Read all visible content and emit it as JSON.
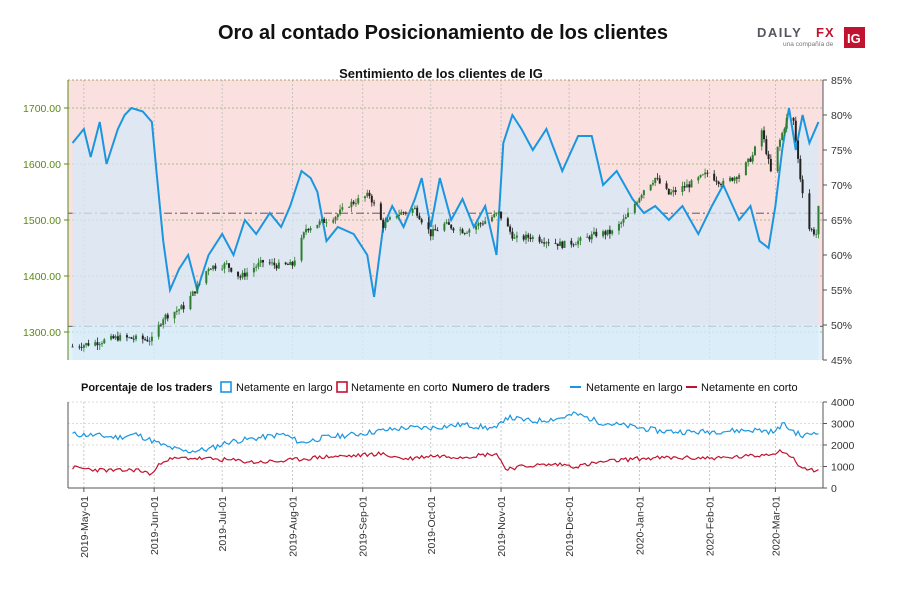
{
  "page": {
    "title": "Oro al contado Posicionamiento de los clientes",
    "logo": {
      "brand": "DAILYFX",
      "tagline": "una compañía de",
      "badge": "IG"
    }
  },
  "colors": {
    "long": "#1a96e0",
    "short": "#c1122f",
    "candle_up": "#2e7d32",
    "candle_down": "#222222",
    "zone_above_50": "#fbe0e0",
    "zone_below_50": "#e6f2fa",
    "left_axis": "#5a8a12"
  },
  "chart_data": [
    {
      "type": "line",
      "title": "Sentimiento de los clientes de IG",
      "x_ticks": [
        "2019-May-01",
        "2019-Jun-01",
        "2019-Jul-01",
        "2019-Aug-01",
        "2019-Sep-01",
        "2019-Oct-01",
        "2019-Nov-01",
        "2019-Dec-01",
        "2020-Jan-01",
        "2020-Feb-01",
        "2020-Mar-01"
      ],
      "left_axis": {
        "ticks": [
          "1300.00",
          "1400.00",
          "1500.00",
          "1600.00",
          "1700.00"
        ],
        "ylim": [
          1250,
          1750
        ]
      },
      "right_axis": {
        "ticks": [
          "45%",
          "50%",
          "55%",
          "60%",
          "65%",
          "70%",
          "75%",
          "80%",
          "85%"
        ],
        "ylim": [
          45,
          85
        ]
      },
      "reference_lines": [
        1310,
        1512
      ],
      "price_ohlc_series": {
        "name": "Oro al contado",
        "points": [
          [
            "2019-04-26",
            1274
          ],
          [
            "2019-05-06",
            1281
          ],
          [
            "2019-05-16",
            1290
          ],
          [
            "2019-05-24",
            1288
          ],
          [
            "2019-05-31",
            1286
          ],
          [
            "2019-06-05",
            1326
          ],
          [
            "2019-06-14",
            1345
          ],
          [
            "2019-06-20",
            1380
          ],
          [
            "2019-06-25",
            1416
          ],
          [
            "2019-07-03",
            1420
          ],
          [
            "2019-07-09",
            1398
          ],
          [
            "2019-07-15",
            1415
          ],
          [
            "2019-07-19",
            1425
          ],
          [
            "2019-07-26",
            1418
          ],
          [
            "2019-08-01",
            1420
          ],
          [
            "2019-08-07",
            1485
          ],
          [
            "2019-08-13",
            1495
          ],
          [
            "2019-08-20",
            1507
          ],
          [
            "2019-08-26",
            1528
          ],
          [
            "2019-09-04",
            1545
          ],
          [
            "2019-09-10",
            1490
          ],
          [
            "2019-09-16",
            1510
          ],
          [
            "2019-09-24",
            1520
          ],
          [
            "2019-10-01",
            1475
          ],
          [
            "2019-10-07",
            1492
          ],
          [
            "2019-10-16",
            1480
          ],
          [
            "2019-10-24",
            1496
          ],
          [
            "2019-10-31",
            1512
          ],
          [
            "2019-11-07",
            1466
          ],
          [
            "2019-11-14",
            1470
          ],
          [
            "2019-11-20",
            1464
          ],
          [
            "2019-11-28",
            1456
          ],
          [
            "2019-12-06",
            1463
          ],
          [
            "2019-12-13",
            1475
          ],
          [
            "2019-12-20",
            1478
          ],
          [
            "2019-12-26",
            1503
          ],
          [
            "2020-01-03",
            1555
          ],
          [
            "2020-01-08",
            1575
          ],
          [
            "2020-01-14",
            1546
          ],
          [
            "2020-01-24",
            1565
          ],
          [
            "2020-01-31",
            1583
          ],
          [
            "2020-02-07",
            1565
          ],
          [
            "2020-02-14",
            1582
          ],
          [
            "2020-02-20",
            1615
          ],
          [
            "2020-02-24",
            1660
          ],
          [
            "2020-02-28",
            1585
          ],
          [
            "2020-03-03",
            1642
          ],
          [
            "2020-03-06",
            1680
          ],
          [
            "2020-03-09",
            1675
          ],
          [
            "2020-03-12",
            1575
          ],
          [
            "2020-03-16",
            1485
          ],
          [
            "2020-03-19",
            1475
          ],
          [
            "2020-03-20",
            1520
          ]
        ]
      },
      "long_pct_series": {
        "name": "Netamente en largo",
        "points": [
          [
            "2019-04-26",
            76
          ],
          [
            "2019-05-01",
            78
          ],
          [
            "2019-05-04",
            74
          ],
          [
            "2019-05-08",
            79
          ],
          [
            "2019-05-11",
            73
          ],
          [
            "2019-05-16",
            78
          ],
          [
            "2019-05-19",
            80
          ],
          [
            "2019-05-22",
            81
          ],
          [
            "2019-05-27",
            80.5
          ],
          [
            "2019-05-31",
            79
          ],
          [
            "2019-06-02",
            72
          ],
          [
            "2019-06-05",
            62
          ],
          [
            "2019-06-08",
            55
          ],
          [
            "2019-06-12",
            58
          ],
          [
            "2019-06-16",
            60
          ],
          [
            "2019-06-20",
            55
          ],
          [
            "2019-06-25",
            60
          ],
          [
            "2019-07-01",
            63
          ],
          [
            "2019-07-06",
            60
          ],
          [
            "2019-07-11",
            65
          ],
          [
            "2019-07-16",
            63
          ],
          [
            "2019-07-22",
            66
          ],
          [
            "2019-07-27",
            64
          ],
          [
            "2019-07-31",
            67
          ],
          [
            "2019-08-05",
            72
          ],
          [
            "2019-08-09",
            71
          ],
          [
            "2019-08-12",
            69
          ],
          [
            "2019-08-16",
            62
          ],
          [
            "2019-08-21",
            64
          ],
          [
            "2019-08-28",
            63
          ],
          [
            "2019-09-03",
            60
          ],
          [
            "2019-09-06",
            54
          ],
          [
            "2019-09-10",
            64
          ],
          [
            "2019-09-14",
            67
          ],
          [
            "2019-09-19",
            64
          ],
          [
            "2019-09-24",
            68
          ],
          [
            "2019-09-27",
            71
          ],
          [
            "2019-10-01",
            64
          ],
          [
            "2019-10-05",
            71
          ],
          [
            "2019-10-10",
            65
          ],
          [
            "2019-10-15",
            68
          ],
          [
            "2019-10-20",
            64
          ],
          [
            "2019-10-25",
            67
          ],
          [
            "2019-10-30",
            60
          ],
          [
            "2019-11-02",
            76
          ],
          [
            "2019-11-06",
            80
          ],
          [
            "2019-11-10",
            78
          ],
          [
            "2019-11-15",
            75
          ],
          [
            "2019-11-21",
            78
          ],
          [
            "2019-11-28",
            72
          ],
          [
            "2019-12-05",
            77
          ],
          [
            "2019-12-11",
            77
          ],
          [
            "2019-12-16",
            70
          ],
          [
            "2019-12-22",
            72
          ],
          [
            "2019-12-29",
            68
          ],
          [
            "2020-01-03",
            66
          ],
          [
            "2020-01-08",
            67
          ],
          [
            "2020-01-14",
            65
          ],
          [
            "2020-01-20",
            67
          ],
          [
            "2020-01-27",
            63
          ],
          [
            "2020-02-02",
            67
          ],
          [
            "2020-02-07",
            70
          ],
          [
            "2020-02-14",
            65
          ],
          [
            "2020-02-19",
            67
          ],
          [
            "2020-02-23",
            62
          ],
          [
            "2020-02-27",
            61
          ],
          [
            "2020-03-01",
            67
          ],
          [
            "2020-03-04",
            75
          ],
          [
            "2020-03-07",
            81
          ],
          [
            "2020-03-10",
            75
          ],
          [
            "2020-03-13",
            80
          ],
          [
            "2020-03-16",
            76
          ],
          [
            "2020-03-20",
            79
          ]
        ]
      }
    },
    {
      "type": "line",
      "title": "",
      "legend": [
        {
          "group": "Porcentaje de los traders",
          "items": [
            {
              "label": "Netamente en largo",
              "series": "long"
            },
            {
              "label": "Netamente en corto",
              "series": "short"
            }
          ]
        },
        {
          "group": "Numero de traders",
          "items": [
            {
              "label": "Netamente en largo",
              "series": "long"
            },
            {
              "label": "Netamente en corto",
              "series": "short"
            }
          ]
        }
      ],
      "right_axis": {
        "ticks": [
          "0",
          "1000",
          "2000",
          "3000",
          "4000"
        ],
        "ylim": [
          0,
          4000
        ]
      },
      "x_ticks": [
        "2019-May-01",
        "2019-Jun-01",
        "2019-Jul-01",
        "2019-Aug-01",
        "2019-Sep-01",
        "2019-Oct-01",
        "2019-Nov-01",
        "2019-Dec-01",
        "2020-Jan-01",
        "2020-Feb-01",
        "2020-Mar-01"
      ],
      "series": [
        {
          "name": "Netamente en largo",
          "points": [
            [
              "2019-04-26",
              2500
            ],
            [
              "2019-05-06",
              2450
            ],
            [
              "2019-05-16",
              2350
            ],
            [
              "2019-05-24",
              2500
            ],
            [
              "2019-05-31",
              2200
            ],
            [
              "2019-06-07",
              1900
            ],
            [
              "2019-06-15",
              1700
            ],
            [
              "2019-06-25",
              1800
            ],
            [
              "2019-07-04",
              2150
            ],
            [
              "2019-07-15",
              2300
            ],
            [
              "2019-07-28",
              2500
            ],
            [
              "2019-08-05",
              2100
            ],
            [
              "2019-08-15",
              2350
            ],
            [
              "2019-08-29",
              2500
            ],
            [
              "2019-09-08",
              2650
            ],
            [
              "2019-09-20",
              2800
            ],
            [
              "2019-10-01",
              2800
            ],
            [
              "2019-10-15",
              2950
            ],
            [
              "2019-10-30",
              2750
            ],
            [
              "2019-11-03",
              3300
            ],
            [
              "2019-11-15",
              3100
            ],
            [
              "2019-11-27",
              3250
            ],
            [
              "2019-12-04",
              3450
            ],
            [
              "2019-12-15",
              3050
            ],
            [
              "2019-12-29",
              2850
            ],
            [
              "2020-01-10",
              2650
            ],
            [
              "2020-01-26",
              2600
            ],
            [
              "2020-02-07",
              2650
            ],
            [
              "2020-02-22",
              2700
            ],
            [
              "2020-03-01",
              2600
            ],
            [
              "2020-03-04",
              3000
            ],
            [
              "2020-03-08",
              2700
            ],
            [
              "2020-03-13",
              2400
            ],
            [
              "2020-03-20",
              2650
            ]
          ]
        },
        {
          "name": "Netamente en corto",
          "points": [
            [
              "2019-04-26",
              950
            ],
            [
              "2019-05-06",
              850
            ],
            [
              "2019-05-16",
              800
            ],
            [
              "2019-05-24",
              850
            ],
            [
              "2019-05-31",
              650
            ],
            [
              "2019-06-05",
              1300
            ],
            [
              "2019-06-15",
              1400
            ],
            [
              "2019-06-25",
              1350
            ],
            [
              "2019-07-04",
              1300
            ],
            [
              "2019-07-15",
              1200
            ],
            [
              "2019-07-28",
              1250
            ],
            [
              "2019-08-05",
              1350
            ],
            [
              "2019-08-15",
              1450
            ],
            [
              "2019-08-29",
              1500
            ],
            [
              "2019-09-08",
              1600
            ],
            [
              "2019-09-20",
              1350
            ],
            [
              "2019-10-01",
              1500
            ],
            [
              "2019-10-15",
              1450
            ],
            [
              "2019-10-30",
              1600
            ],
            [
              "2019-11-03",
              900
            ],
            [
              "2019-11-15",
              1050
            ],
            [
              "2019-11-27",
              1100
            ],
            [
              "2019-12-04",
              1000
            ],
            [
              "2019-12-15",
              1200
            ],
            [
              "2019-12-29",
              1350
            ],
            [
              "2020-01-10",
              1400
            ],
            [
              "2020-01-26",
              1400
            ],
            [
              "2020-02-07",
              1400
            ],
            [
              "2020-02-22",
              1500
            ],
            [
              "2020-03-01",
              1650
            ],
            [
              "2020-03-04",
              1750
            ],
            [
              "2020-03-08",
              1450
            ],
            [
              "2020-03-13",
              900
            ],
            [
              "2020-03-20",
              800
            ]
          ]
        }
      ]
    }
  ]
}
